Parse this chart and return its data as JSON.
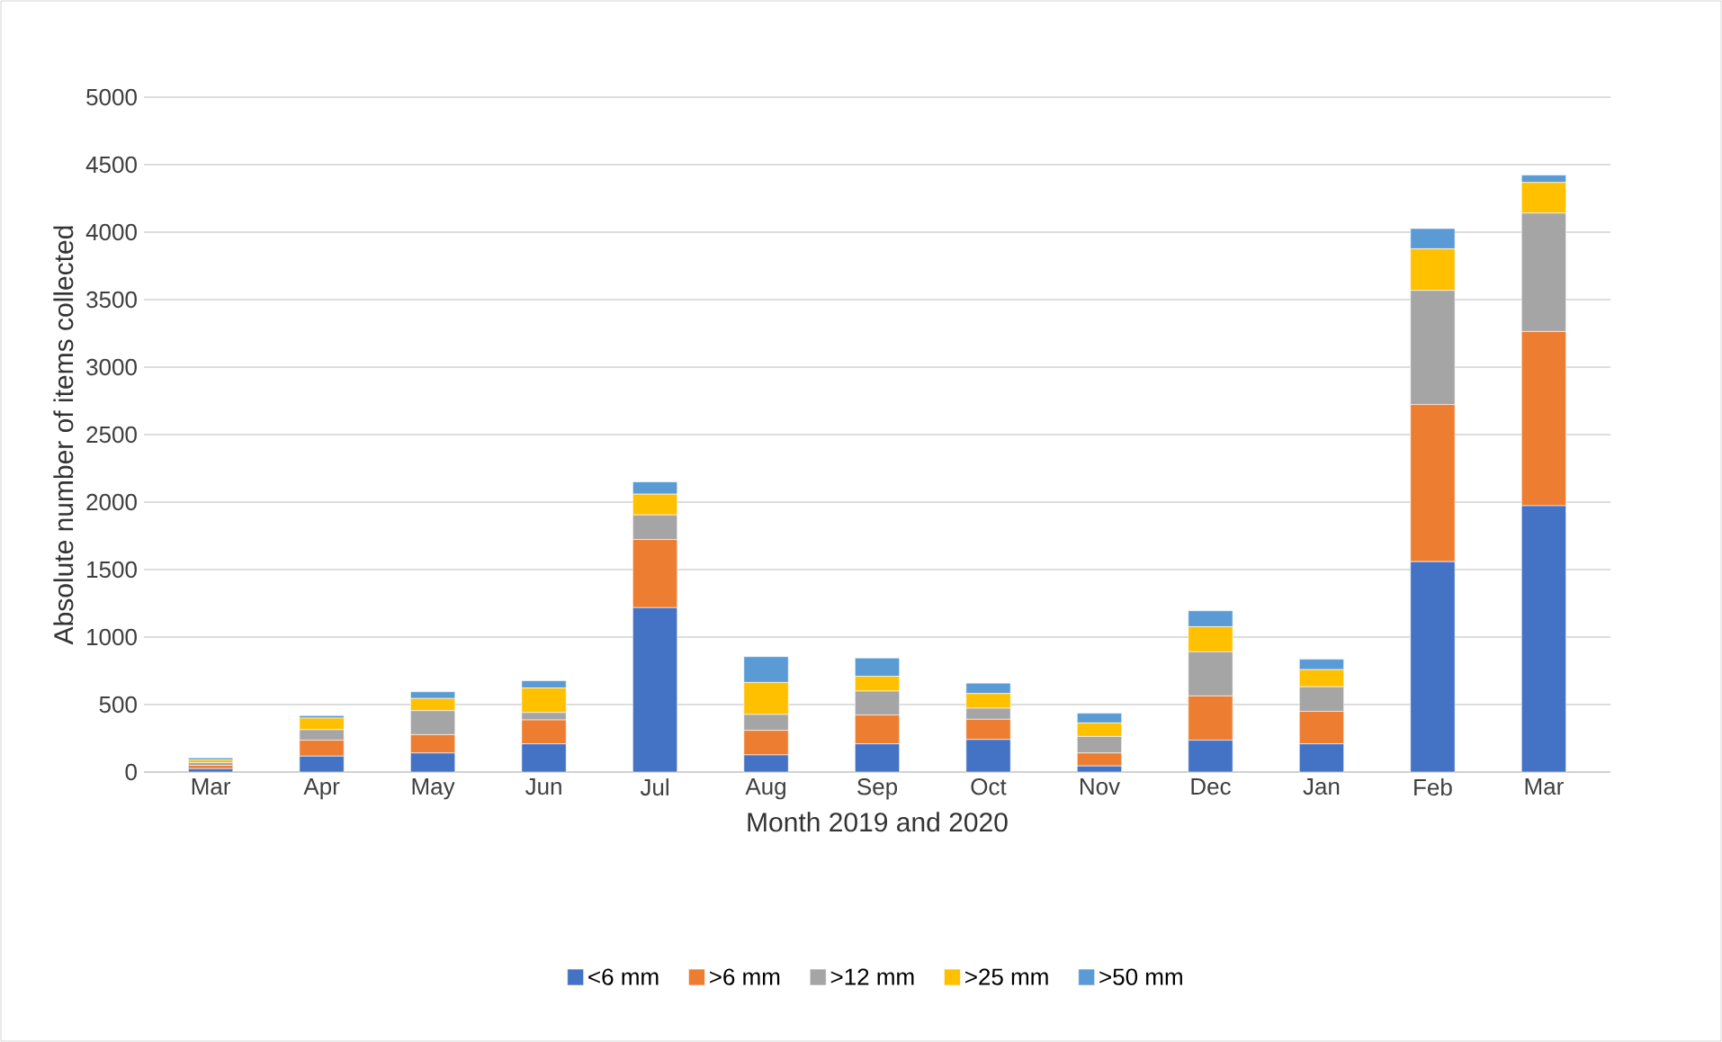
{
  "chart_data": {
    "type": "bar",
    "stacked": true,
    "xlabel": "Month 2019 and 2020",
    "ylabel": "Absolute number of items collected",
    "categories": [
      "Mar",
      "Apr",
      "May",
      "Jun",
      "Jul",
      "Aug",
      "Sep",
      "Oct",
      "Nov",
      "Dec",
      "Jan",
      "Feb",
      "Mar"
    ],
    "series": [
      {
        "name": "<6 mm",
        "color": "#4472c4",
        "values": [
          25,
          118,
          141,
          209,
          1218,
          127,
          209,
          241,
          45,
          236,
          209,
          1559,
          1973
        ]
      },
      {
        "name": ">6 mm",
        "color": "#ed7d31",
        "values": [
          25,
          118,
          136,
          177,
          505,
          182,
          214,
          150,
          96,
          328,
          241,
          1164,
          1291
        ]
      },
      {
        "name": ">12 mm",
        "color": "#a5a5a5",
        "values": [
          20,
          78,
          178,
          55,
          182,
          118,
          177,
          82,
          123,
          327,
          182,
          845,
          877
        ]
      },
      {
        "name": ">25 mm",
        "color": "#ffc000",
        "values": [
          20,
          86,
          90,
          182,
          154,
          237,
          109,
          109,
          100,
          186,
          127,
          309,
          227
        ]
      },
      {
        "name": ">50 mm",
        "color": "#5b9bd5",
        "values": [
          15,
          18,
          50,
          54,
          91,
          191,
          136,
          77,
          72,
          118,
          77,
          150,
          55
        ]
      }
    ],
    "ylim": [
      0,
      5000
    ],
    "yticks": [
      0,
      500,
      1000,
      1500,
      2000,
      2500,
      3000,
      3500,
      4000,
      4500,
      5000
    ],
    "grid": "y",
    "legend": "bottom"
  }
}
